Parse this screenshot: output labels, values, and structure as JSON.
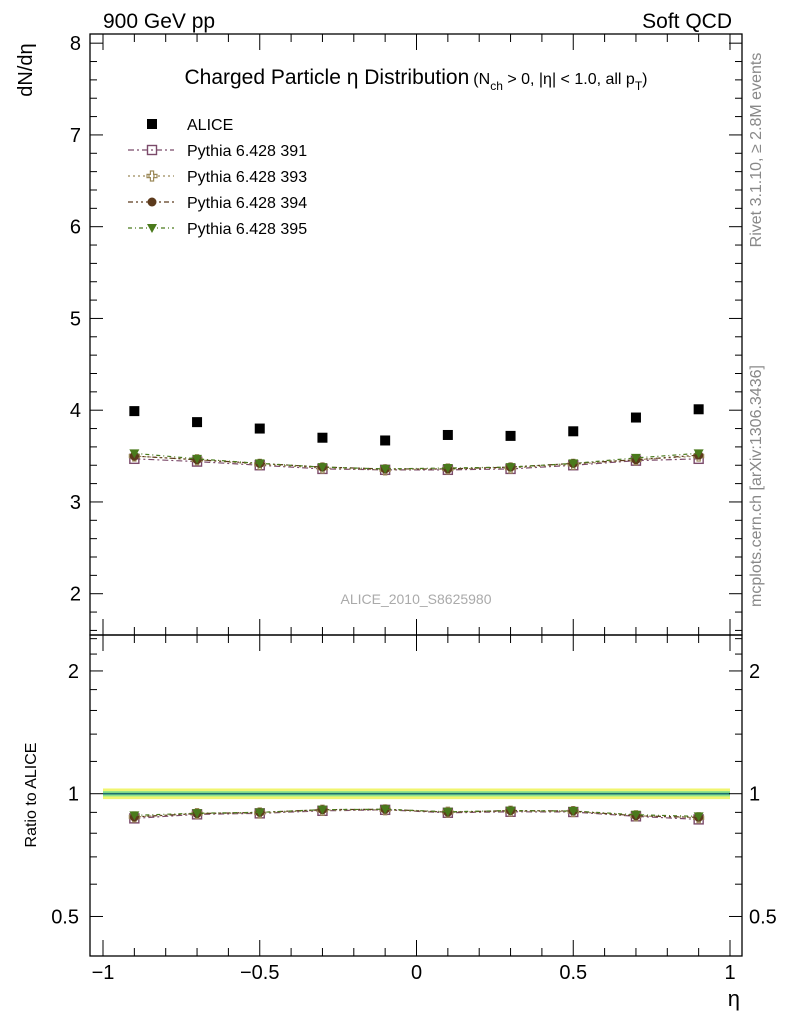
{
  "header": {
    "left": "900 GeV pp",
    "right": "Soft QCD"
  },
  "side_labels": {
    "rivet": "Rivet 3.1.10, ≥ 2.8M events",
    "mcplots": "mcplots.cern.ch [arXiv:1306.3436]"
  },
  "watermark": "ALICE_2010_S8625980",
  "title": {
    "main": "Charged Particle η Distribution",
    "cuts_prefix": "(N",
    "cuts_sub": "ch",
    "cuts_mid": " > 0, |η| < 1.0, all p",
    "cuts_sub2": "T",
    "cuts_suffix": ")"
  },
  "colors": {
    "alice": "#000000",
    "s391": "#7b4a6a",
    "s393": "#9c8a5a",
    "s394": "#5c3a1c",
    "s395": "#4a7a1c",
    "band_outer": "#f0f570",
    "band_inner": "#8ee38c",
    "ref_line": "#1a6e6e"
  },
  "chart_data": [
    {
      "type": "scatter",
      "panel": "main",
      "ylabel": "dN/dη",
      "xlim": [
        -1.0,
        1.0
      ],
      "ylim": [
        1.55,
        8.1
      ],
      "yticks": [
        2,
        3,
        4,
        5,
        6,
        7,
        8
      ],
      "legend_placement": "top-left",
      "x": [
        -0.9,
        -0.7,
        -0.5,
        -0.3,
        -0.1,
        0.1,
        0.3,
        0.5,
        0.7,
        0.9
      ],
      "series": [
        {
          "name": "ALICE",
          "key": "alice",
          "marker": "square",
          "values": [
            3.99,
            3.87,
            3.8,
            3.7,
            3.67,
            3.73,
            3.72,
            3.77,
            3.92,
            4.01
          ]
        },
        {
          "name": "Pythia 6.428 391",
          "key": "s391",
          "marker": "open-square",
          "values": [
            3.47,
            3.44,
            3.4,
            3.36,
            3.35,
            3.35,
            3.36,
            3.4,
            3.45,
            3.47
          ]
        },
        {
          "name": "Pythia 6.428 393",
          "key": "s393",
          "marker": "open-cross",
          "values": [
            3.5,
            3.46,
            3.41,
            3.37,
            3.35,
            3.36,
            3.37,
            3.41,
            3.46,
            3.5
          ]
        },
        {
          "name": "Pythia 6.428 394",
          "key": "s394",
          "marker": "circle",
          "values": [
            3.5,
            3.46,
            3.42,
            3.38,
            3.36,
            3.36,
            3.38,
            3.42,
            3.46,
            3.51
          ]
        },
        {
          "name": "Pythia 6.428 395",
          "key": "s395",
          "marker": "triangle-down",
          "values": [
            3.53,
            3.47,
            3.42,
            3.38,
            3.36,
            3.37,
            3.38,
            3.42,
            3.48,
            3.53
          ]
        }
      ]
    },
    {
      "type": "scatter",
      "panel": "ratio",
      "ylabel": "Ratio to ALICE",
      "xlabel": "η",
      "xlim": [
        -1.0,
        1.0
      ],
      "xticks": [
        -1,
        -0.5,
        0,
        0.5,
        1
      ],
      "xtick_labels": [
        "−1",
        "−0.5",
        "0",
        "0.5",
        "1"
      ],
      "ylim": [
        0.4,
        2.45
      ],
      "yscale": "log",
      "yticks": [
        0.5,
        1,
        2
      ],
      "ytick_labels": [
        "0.5",
        "1",
        "2"
      ],
      "reference_band": {
        "y": 1.0,
        "outer": [
          0.97,
          1.03
        ],
        "inner": [
          0.985,
          1.015
        ]
      },
      "x": [
        -0.9,
        -0.7,
        -0.5,
        -0.3,
        -0.1,
        0.1,
        0.3,
        0.5,
        0.7,
        0.9
      ],
      "series": [
        {
          "name": "Pythia 6.428 391",
          "key": "s391",
          "marker": "open-square",
          "values": [
            0.87,
            0.89,
            0.895,
            0.908,
            0.913,
            0.898,
            0.903,
            0.902,
            0.88,
            0.865
          ]
        },
        {
          "name": "Pythia 6.428 393",
          "key": "s393",
          "marker": "open-cross",
          "values": [
            0.877,
            0.894,
            0.897,
            0.911,
            0.913,
            0.901,
            0.906,
            0.904,
            0.883,
            0.873
          ]
        },
        {
          "name": "Pythia 6.428 394",
          "key": "s394",
          "marker": "circle",
          "values": [
            0.877,
            0.894,
            0.9,
            0.914,
            0.916,
            0.901,
            0.909,
            0.907,
            0.883,
            0.875
          ]
        },
        {
          "name": "Pythia 6.428 395",
          "key": "s395",
          "marker": "triangle-down",
          "values": [
            0.885,
            0.896,
            0.9,
            0.914,
            0.916,
            0.903,
            0.909,
            0.907,
            0.888,
            0.88
          ]
        }
      ]
    }
  ]
}
